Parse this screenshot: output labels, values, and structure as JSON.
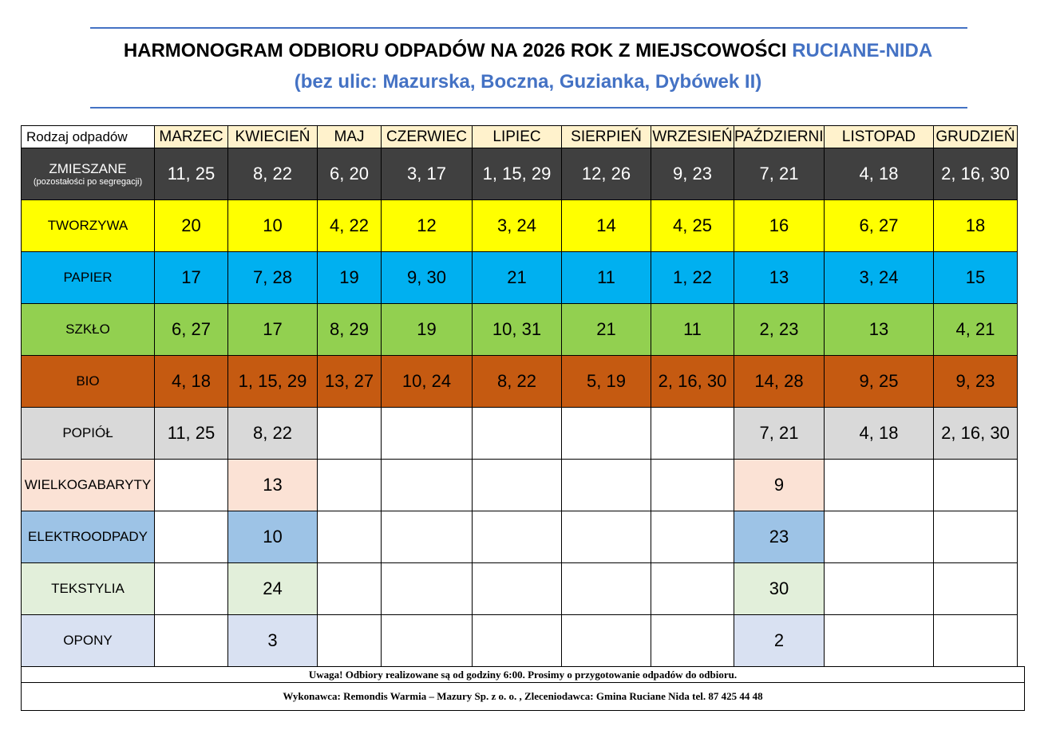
{
  "title": {
    "main": "HARMONOGRAM ODBIORU ODPADÓW NA 2026 ROK Z MIEJSCOWOŚCI ",
    "town": "RUCIANE-NIDA",
    "subtitle": "(bez ulic: Mazurska, Boczna, Guzianka, Dybówek II)"
  },
  "table": {
    "corner": "Rodzaj odpadów",
    "months": [
      "MARZEC",
      "KWIECIEŃ",
      "MAJ",
      "CZERWIEC",
      "LIPIEC",
      "SIERPIEŃ",
      "WRZESIEŃ",
      "PAŹDZIERNIK",
      "LISTOPAD",
      "GRUDZIEŃ"
    ],
    "rows": [
      {
        "label": "ZMIESZANE",
        "sublabel": "(pozostałości po segregacji)",
        "color": "#404040",
        "text_color": "#ffffff",
        "values": [
          "11, 25",
          "8, 22",
          "6, 20",
          "3, 17",
          "1, 15, 29",
          "12, 26",
          "9, 23",
          "7, 21",
          "4, 18",
          "2, 16, 30"
        ]
      },
      {
        "label": "TWORZYWA",
        "color": "#ffff00",
        "text_color": "#000000",
        "values": [
          "20",
          "10",
          "4, 22",
          "12",
          "3, 24",
          "14",
          "4, 25",
          "16",
          "6, 27",
          "18"
        ]
      },
      {
        "label": "PAPIER",
        "color": "#00b0f0",
        "text_color": "#000000",
        "values": [
          "17",
          "7, 28",
          "19",
          "9, 30",
          "21",
          "11",
          "1, 22",
          "13",
          "3, 24",
          "15"
        ]
      },
      {
        "label": "SZKŁO",
        "color": "#92d050",
        "text_color": "#000000",
        "values": [
          "6, 27",
          "17",
          "8, 29",
          "19",
          "10, 31",
          "21",
          "11",
          "2, 23",
          "13",
          "4, 21"
        ]
      },
      {
        "label": "BIO",
        "color": "#c55a11",
        "text_color": "#000000",
        "values": [
          "4, 18",
          "1, 15, 29",
          "13, 27",
          "10, 24",
          "8, 22",
          "5, 19",
          "2, 16, 30",
          "14, 28",
          "9, 25",
          "9, 23"
        ]
      },
      {
        "label": "POPIÓŁ",
        "color": "#d9d9d9",
        "text_color": "#000000",
        "values": [
          "11, 25",
          "8, 22",
          "",
          "",
          "",
          "",
          "",
          "7, 21",
          "4, 18",
          "2, 16, 30"
        ]
      },
      {
        "label": "WIELKOGABARYTY",
        "color": "#fbe2d5",
        "text_color": "#000000",
        "values": [
          "",
          "13",
          "",
          "",
          "",
          "",
          "",
          "9",
          "",
          ""
        ]
      },
      {
        "label": "ELEKTROODPADY",
        "color": "#9dc3e6",
        "text_color": "#000000",
        "values": [
          "",
          "10",
          "",
          "",
          "",
          "",
          "",
          "23",
          "",
          ""
        ]
      },
      {
        "label": "TEKSTYLIA",
        "color": "#e2efda",
        "text_color": "#000000",
        "values": [
          "",
          "24",
          "",
          "",
          "",
          "",
          "",
          "30",
          "",
          ""
        ]
      },
      {
        "label": "OPONY",
        "color": "#d9e1f2",
        "text_color": "#000000",
        "values": [
          "",
          "3",
          "",
          "",
          "",
          "",
          "",
          "2",
          "",
          ""
        ]
      }
    ]
  },
  "footer": {
    "notice": "Uwaga! Odbiory realizowane są od godziny 6:00. Prosimy o przygotowanie odpadów do odbioru.",
    "contractor": "Wykonawca: Remondis Warmia – Mazury Sp. z o. o. , Zleceniodawca: Gmina Ruciane Nida tel. 87 425 44 48"
  }
}
